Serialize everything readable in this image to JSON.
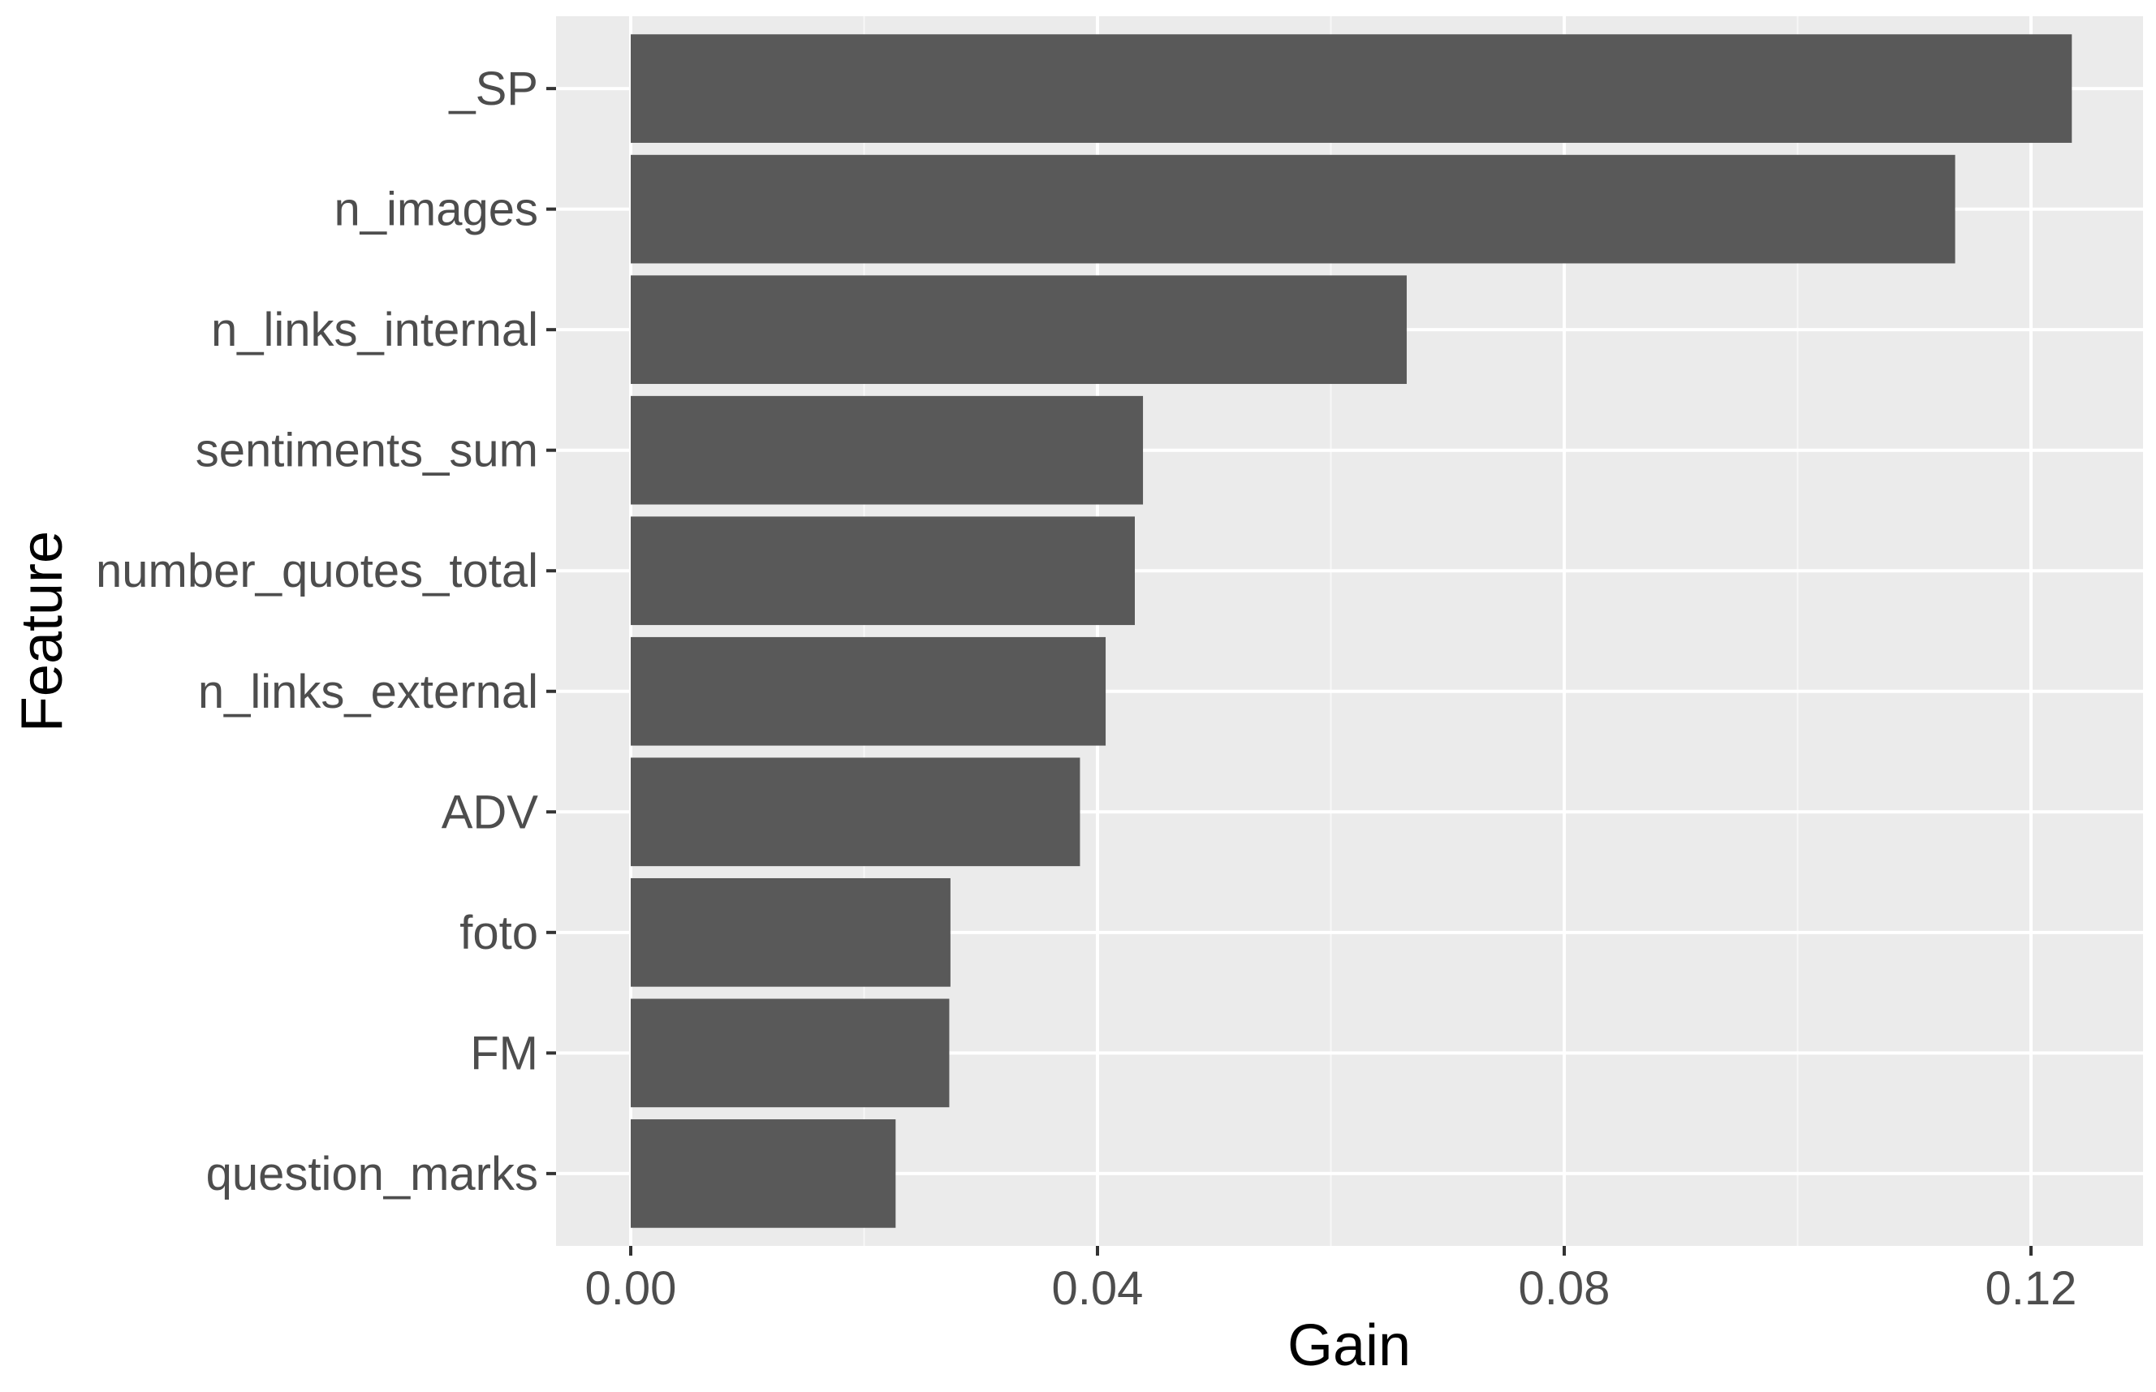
{
  "chart_data": {
    "type": "bar",
    "orientation": "horizontal",
    "title": "",
    "xlabel": "Gain",
    "ylabel": "Feature",
    "categories": [
      "_SP",
      "n_images",
      "n_links_internal",
      "sentiments_sum",
      "number_quotes_total",
      "n_links_external",
      "ADV",
      "foto",
      "FM",
      "question_marks"
    ],
    "values": [
      0.1235,
      0.1135,
      0.0665,
      0.0439,
      0.0432,
      0.0407,
      0.0385,
      0.0274,
      0.0273,
      0.0227
    ],
    "xlim": [
      -0.0064,
      0.1296
    ],
    "xticks": [
      0.0,
      0.04,
      0.08,
      0.12
    ],
    "xtick_labels": [
      "0.00",
      "0.04",
      "0.08",
      "0.12"
    ],
    "grid": true,
    "legend": "none",
    "colors": {
      "bar": "#595959",
      "panel_background": "#ebebeb",
      "grid_major": "#ffffff",
      "grid_minor": "#f7f7f7",
      "tick_mark": "#333333",
      "tick_label": "#4d4d4d",
      "axis_title": "#000000"
    }
  }
}
